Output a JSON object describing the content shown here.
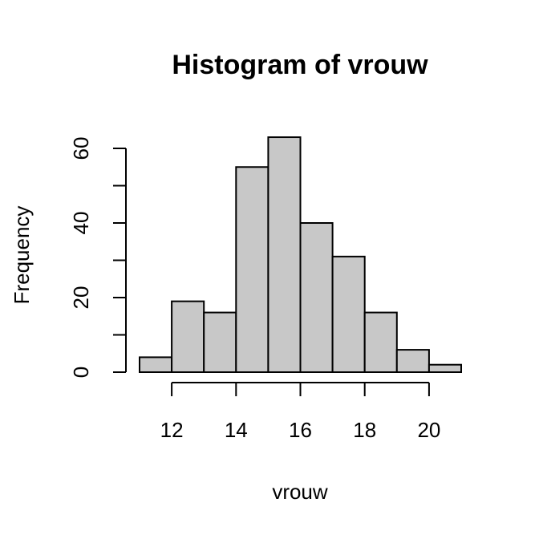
{
  "chart_data": {
    "type": "bar",
    "title": "Histogram of vrouw",
    "xlabel": "vrouw",
    "ylabel": "Frequency",
    "bins": [
      {
        "start": 11,
        "end": 12,
        "count": 4
      },
      {
        "start": 12,
        "end": 13,
        "count": 19
      },
      {
        "start": 13,
        "end": 14,
        "count": 16
      },
      {
        "start": 14,
        "end": 15,
        "count": 55
      },
      {
        "start": 15,
        "end": 16,
        "count": 63
      },
      {
        "start": 16,
        "end": 17,
        "count": 40
      },
      {
        "start": 17,
        "end": 18,
        "count": 31
      },
      {
        "start": 18,
        "end": 19,
        "count": 16
      },
      {
        "start": 19,
        "end": 20,
        "count": 6
      },
      {
        "start": 20,
        "end": 21,
        "count": 2
      }
    ],
    "xlim": [
      11,
      21
    ],
    "ylim": [
      0,
      63
    ],
    "x_ticks": [
      12,
      14,
      16,
      18,
      20
    ],
    "y_ticks": [
      0,
      10,
      20,
      30,
      40,
      50,
      60
    ],
    "y_tick_labels": [
      0,
      20,
      40,
      60
    ],
    "bar_color": "#c8c8c8",
    "grid": false,
    "legend": "none"
  }
}
